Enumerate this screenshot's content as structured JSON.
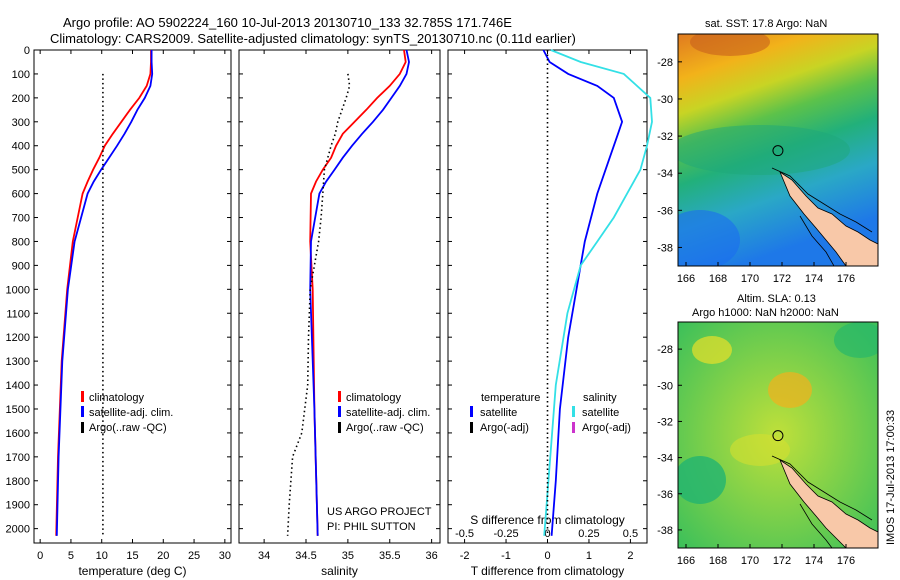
{
  "header": {
    "line1": "Argo profile: AO 5902224_160 10-Jul-2013 20130710_133 32.785S 171.746E",
    "line2": "Climatology: CARS2009. Satellite-adjusted climatology: synTS_20130710.nc (0.11d earlier)"
  },
  "chart_data": [
    {
      "type": "line",
      "id": "temperature",
      "xlabel": "temperature (deg C)",
      "ylabel": "",
      "xlim": [
        -1,
        31
      ],
      "ylim": [
        2060,
        0
      ],
      "xticks": [
        0,
        5,
        10,
        15,
        20,
        25,
        30
      ],
      "yticks": [
        0,
        100,
        200,
        300,
        400,
        500,
        600,
        700,
        800,
        900,
        1000,
        1100,
        1200,
        1300,
        1400,
        1500,
        1600,
        1700,
        1800,
        1900,
        2000
      ],
      "legend": [
        "climatology",
        "satellite-adj. clim.",
        "Argo(..raw -QC)"
      ],
      "series": [
        {
          "name": "climatology",
          "color": "#ff0000",
          "x": [
            18.0,
            18.0,
            17.9,
            17.3,
            16.1,
            14.6,
            13.2,
            11.8,
            10.5,
            9.6,
            8.6,
            7.7,
            6.9,
            5.3,
            4.4,
            3.5,
            2.9,
            2.6
          ],
          "y": [
            0,
            50,
            100,
            150,
            200,
            250,
            300,
            350,
            400,
            450,
            500,
            550,
            600,
            800,
            1000,
            1300,
            1700,
            2030
          ]
        },
        {
          "name": "satellite-adj. clim.",
          "color": "#0000ff",
          "x": [
            18.1,
            18.1,
            18.2,
            17.9,
            17.0,
            15.8,
            14.8,
            13.7,
            12.5,
            11.2,
            9.9,
            8.7,
            7.7,
            5.6,
            4.5,
            3.6,
            3.0,
            2.7
          ],
          "y": [
            0,
            50,
            100,
            150,
            200,
            250,
            300,
            350,
            400,
            450,
            500,
            550,
            600,
            800,
            1000,
            1300,
            1700,
            2030
          ]
        },
        {
          "name": "Argo(..raw -QC)",
          "color": "#000000",
          "dotted": true,
          "x": [
            10.2,
            10.2
          ],
          "y": [
            100,
            2030
          ]
        }
      ]
    },
    {
      "type": "line",
      "id": "salinity",
      "xlabel": "salinity",
      "ylabel": "",
      "xlim": [
        33.7,
        36.1
      ],
      "ylim": [
        2060,
        0
      ],
      "xticks": [
        34,
        34.5,
        35,
        35.5,
        36
      ],
      "xticklabels": [
        "34",
        "34.5",
        "35",
        "35.5",
        "36"
      ],
      "legend": [
        "climatology",
        "satellite-adj. clim.",
        "Argo(..raw -QC)"
      ],
      "annotation": [
        "US ARGO PROJECT",
        "PI: PHIL SUTTON"
      ],
      "series": [
        {
          "name": "climatology",
          "color": "#ff0000",
          "x": [
            35.67,
            35.69,
            35.62,
            35.5,
            35.35,
            35.22,
            35.08,
            34.94,
            34.86,
            34.8,
            34.7,
            34.62,
            34.56,
            34.55,
            34.58,
            34.6,
            34.64
          ],
          "y": [
            0,
            50,
            100,
            150,
            200,
            250,
            300,
            350,
            400,
            450,
            500,
            550,
            600,
            800,
            1000,
            1500,
            2030
          ]
        },
        {
          "name": "satellite-adj. clim.",
          "color": "#0000ff",
          "x": [
            35.7,
            35.73,
            35.7,
            35.62,
            35.52,
            35.42,
            35.3,
            35.17,
            35.05,
            34.94,
            34.84,
            34.74,
            34.66,
            34.56,
            34.55,
            34.6,
            34.64
          ],
          "y": [
            0,
            50,
            100,
            150,
            200,
            250,
            300,
            350,
            400,
            450,
            500,
            550,
            600,
            800,
            1000,
            1500,
            2030
          ]
        },
        {
          "name": "Argo(..raw -QC)",
          "color": "#000000",
          "dotted": true,
          "x": [
            35.0,
            35.02,
            34.98,
            34.93,
            34.88,
            34.85,
            34.8,
            34.76,
            34.72,
            34.7,
            34.68,
            34.65,
            34.6,
            34.55,
            34.53,
            34.52,
            34.45,
            34.34,
            34.3,
            34.28
          ],
          "y": [
            100,
            150,
            200,
            250,
            300,
            350,
            400,
            450,
            500,
            600,
            700,
            800,
            900,
            1000,
            1200,
            1400,
            1600,
            1700,
            1900,
            2030
          ]
        }
      ]
    },
    {
      "type": "line",
      "id": "difference",
      "xlabel": "T difference from climatology",
      "xlabel2": "S difference from climatology",
      "xlim": [
        -2.4,
        2.4
      ],
      "ylim": [
        2060,
        0
      ],
      "xticks": [
        -2,
        -1,
        0,
        1,
        2
      ],
      "xticks2": [
        -0.5,
        -0.25,
        0,
        0.25,
        0.5
      ],
      "xticklabels2": [
        "-0.5",
        "-0.25",
        "0",
        "0.25",
        "0.5"
      ],
      "legend_temperature": {
        "title": "temperature",
        "items": [
          "satellite",
          "Argo(-adj)"
        ]
      },
      "legend_salinity": {
        "title": "salinity",
        "items": [
          "satellite",
          "Argo(-adj)"
        ]
      },
      "series": [
        {
          "name": "T satellite",
          "color": "#0000ff",
          "x": [
            -0.1,
            0.05,
            0.5,
            1.2,
            1.6,
            1.8,
            1.7,
            1.5,
            1.2,
            0.9,
            0.7,
            0.5,
            0.3,
            0.2,
            0.1
          ],
          "y": [
            0,
            50,
            100,
            150,
            200,
            300,
            350,
            450,
            600,
            800,
            1000,
            1200,
            1500,
            1800,
            2030
          ]
        },
        {
          "name": "S satellite",
          "color": "#33e0e6",
          "x": [
            0.02,
            0.2,
            0.46,
            0.62,
            0.63,
            0.6,
            0.56,
            0.48,
            0.4,
            0.3,
            0.2,
            0.12,
            0.05,
            -0.02
          ],
          "y": [
            0,
            50,
            100,
            200,
            300,
            400,
            500,
            600,
            700,
            800,
            900,
            1100,
            1400,
            2030
          ]
        },
        {
          "name": "zero",
          "color": "#000000",
          "dotted": true,
          "x": [
            0,
            0
          ],
          "y": [
            0,
            2030
          ]
        }
      ]
    }
  ],
  "maps": {
    "sst": {
      "title": "sat. SST: 17.8 Argo: NaN",
      "xticks": [
        166,
        168,
        170,
        172,
        174,
        176
      ],
      "yticks": [
        -28,
        -30,
        -32,
        -34,
        -36,
        -38
      ],
      "xlim": [
        165.5,
        178
      ],
      "ylim": [
        -39,
        -26.5
      ],
      "marker": {
        "lon": 171.746,
        "lat": -32.785
      }
    },
    "sla": {
      "title1": "Altim. SLA: 0.13",
      "title2": "Argo h1000: NaN h2000: NaN",
      "xticks": [
        166,
        168,
        170,
        172,
        174,
        176
      ],
      "yticks": [
        -28,
        -30,
        -32,
        -34,
        -36,
        -38
      ],
      "xlim": [
        165.5,
        178
      ],
      "ylim": [
        -39,
        -26.5
      ],
      "marker": {
        "lon": 171.746,
        "lat": -32.785
      }
    }
  },
  "stamp": "IMOS 17-Jul-2013 17:00:33",
  "colors": {
    "climatology": "#ff0000",
    "satellite": "#0000ff",
    "argo": "#000000",
    "sat_salinity": "#33e0e6",
    "argo_salinity": "#cc33cc",
    "land": "#f8c8a8"
  }
}
